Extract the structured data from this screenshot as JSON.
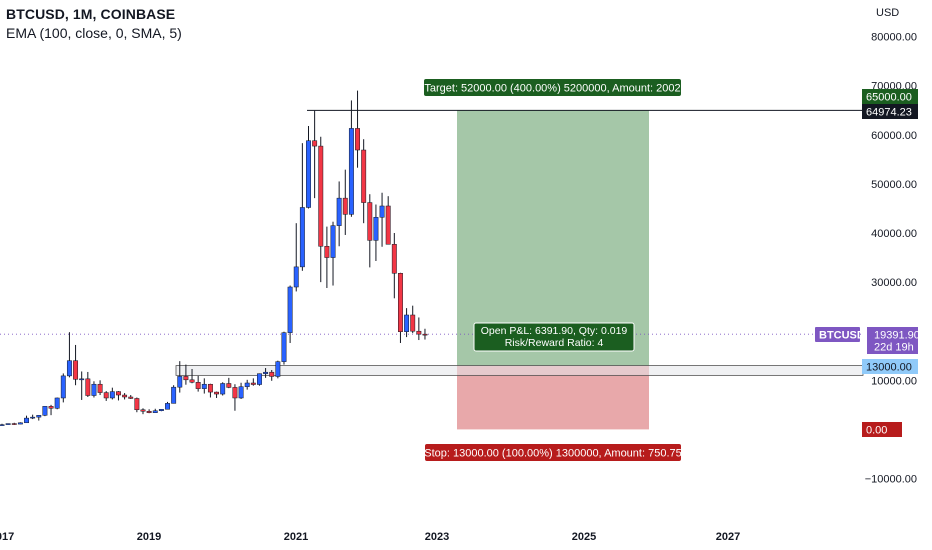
{
  "legend": {
    "symbol_line": "BTCUSD, 1M, COINBASE",
    "indicator_line": "EMA (100, close, 0, SMA, 5)"
  },
  "price_axis": {
    "currency": "USD",
    "ticks": [
      {
        "value": 80000,
        "label": "80000.00"
      },
      {
        "value": 70000,
        "label": "70000.00"
      },
      {
        "value": 60000,
        "label": "60000.00"
      },
      {
        "value": 50000,
        "label": "50000.00"
      },
      {
        "value": 40000,
        "label": "40000.00"
      },
      {
        "value": 30000,
        "label": "30000.00"
      },
      {
        "value": 10000,
        "label": "10000.00"
      },
      {
        "value": -10000,
        "label": "−10000.00"
      }
    ]
  },
  "time_axis": {
    "labels": [
      "2017",
      "2019",
      "2021",
      "2023",
      "2025",
      "2027"
    ]
  },
  "price_tags": {
    "target_price": "65000.00",
    "high_line": "64974.23",
    "symbol": "BTCUSD",
    "last_price": "19391.90",
    "countdown": "22d 19h",
    "entry": "13000.00",
    "stop_zero": "0.00"
  },
  "position": {
    "target_label": "Target: 52000.00 (400.00%) 5200000, Amount: 2002",
    "stop_label": "Stop: 13000.00 (100.00%) 1300000, Amount: 750.75",
    "pnl_line1": "Open P&L: 6391.90, Qty: 0.019",
    "pnl_line2": "Risk/Reward Ratio: 4"
  },
  "colors": {
    "up": "#2962ff",
    "down": "#f23645",
    "target_fill": "#a5c7a8",
    "stop_fill": "#e8a8aa",
    "target_tag": "#1b5e20",
    "stop_tag": "#b71c1c",
    "symbol_tag": "#7e57c2",
    "entry_tag": "#90caf9",
    "last_price_line": "#7e57c2"
  },
  "chart_data": {
    "type": "candlestick",
    "symbol": "BTCUSD",
    "interval": "1M",
    "exchange": "COINBASE",
    "price_range": [
      -15000,
      85000
    ],
    "horizontal_line": 64974.23,
    "support_zone": [
      11000,
      13000
    ],
    "long_position": {
      "entry": 13000,
      "target": 65000,
      "stop": 0
    },
    "candles": [
      {
        "date": "2016-07",
        "open": 620,
        "high": 700,
        "low": 600,
        "close": 650
      },
      {
        "date": "2016-08",
        "open": 650,
        "high": 680,
        "low": 540,
        "close": 580
      },
      {
        "date": "2016-09",
        "open": 580,
        "high": 620,
        "low": 570,
        "close": 600
      },
      {
        "date": "2016-10",
        "open": 600,
        "high": 720,
        "low": 600,
        "close": 700
      },
      {
        "date": "2016-11",
        "open": 700,
        "high": 750,
        "low": 690,
        "close": 740
      },
      {
        "date": "2016-12",
        "open": 740,
        "high": 980,
        "low": 740,
        "close": 960
      },
      {
        "date": "2017-01",
        "open": 960,
        "high": 1150,
        "low": 750,
        "close": 970
      },
      {
        "date": "2017-02",
        "open": 970,
        "high": 1200,
        "low": 950,
        "close": 1190
      },
      {
        "date": "2017-03",
        "open": 1190,
        "high": 1350,
        "low": 900,
        "close": 1080
      },
      {
        "date": "2017-04",
        "open": 1080,
        "high": 1450,
        "low": 1070,
        "close": 1350
      },
      {
        "date": "2017-05",
        "open": 1350,
        "high": 2800,
        "low": 1350,
        "close": 2300
      },
      {
        "date": "2017-06",
        "open": 2300,
        "high": 3000,
        "low": 2100,
        "close": 2500
      },
      {
        "date": "2017-07",
        "open": 2500,
        "high": 2900,
        "low": 1800,
        "close": 2870
      },
      {
        "date": "2017-08",
        "open": 2870,
        "high": 4700,
        "low": 2700,
        "close": 4700
      },
      {
        "date": "2017-09",
        "open": 4700,
        "high": 5000,
        "low": 2900,
        "close": 4300
      },
      {
        "date": "2017-10",
        "open": 4300,
        "high": 6500,
        "low": 4100,
        "close": 6400
      },
      {
        "date": "2017-11",
        "open": 6400,
        "high": 11400,
        "low": 5500,
        "close": 10900
      },
      {
        "date": "2017-12",
        "open": 10900,
        "high": 19800,
        "low": 10600,
        "close": 14000
      },
      {
        "date": "2018-01",
        "open": 14000,
        "high": 17200,
        "low": 9000,
        "close": 10200
      },
      {
        "date": "2018-02",
        "open": 10200,
        "high": 11800,
        "low": 6000,
        "close": 10300
      },
      {
        "date": "2018-03",
        "open": 10300,
        "high": 11700,
        "low": 6600,
        "close": 6900
      },
      {
        "date": "2018-04",
        "open": 6900,
        "high": 9800,
        "low": 6500,
        "close": 9200
      },
      {
        "date": "2018-05",
        "open": 9200,
        "high": 10000,
        "low": 7000,
        "close": 7500
      },
      {
        "date": "2018-06",
        "open": 7500,
        "high": 7800,
        "low": 5800,
        "close": 6400
      },
      {
        "date": "2018-07",
        "open": 6400,
        "high": 8500,
        "low": 6100,
        "close": 7700
      },
      {
        "date": "2018-08",
        "open": 7700,
        "high": 7800,
        "low": 5900,
        "close": 7000
      },
      {
        "date": "2018-09",
        "open": 7000,
        "high": 7400,
        "low": 6100,
        "close": 6600
      },
      {
        "date": "2018-10",
        "open": 6600,
        "high": 7000,
        "low": 6200,
        "close": 6300
      },
      {
        "date": "2018-11",
        "open": 6300,
        "high": 6500,
        "low": 3500,
        "close": 4000
      },
      {
        "date": "2018-12",
        "open": 4000,
        "high": 4300,
        "low": 3100,
        "close": 3700
      },
      {
        "date": "2019-01",
        "open": 3700,
        "high": 4100,
        "low": 3300,
        "close": 3400
      },
      {
        "date": "2019-02",
        "open": 3400,
        "high": 4200,
        "low": 3400,
        "close": 3800
      },
      {
        "date": "2019-03",
        "open": 3800,
        "high": 4100,
        "low": 3700,
        "close": 4100
      },
      {
        "date": "2019-04",
        "open": 4100,
        "high": 5600,
        "low": 4100,
        "close": 5300
      },
      {
        "date": "2019-05",
        "open": 5300,
        "high": 9000,
        "low": 5300,
        "close": 8600
      },
      {
        "date": "2019-06",
        "open": 8600,
        "high": 13900,
        "low": 7500,
        "close": 10800
      },
      {
        "date": "2019-07",
        "open": 10800,
        "high": 13200,
        "low": 9100,
        "close": 10100
      },
      {
        "date": "2019-08",
        "open": 10100,
        "high": 12300,
        "low": 9400,
        "close": 9600
      },
      {
        "date": "2019-09",
        "open": 9600,
        "high": 10900,
        "low": 7700,
        "close": 8300
      },
      {
        "date": "2019-10",
        "open": 8300,
        "high": 10400,
        "low": 7300,
        "close": 9200
      },
      {
        "date": "2019-11",
        "open": 9200,
        "high": 9300,
        "low": 6500,
        "close": 7600
      },
      {
        "date": "2019-12",
        "open": 7600,
        "high": 7700,
        "low": 6400,
        "close": 7200
      },
      {
        "date": "2020-01",
        "open": 7200,
        "high": 9600,
        "low": 6900,
        "close": 9350
      },
      {
        "date": "2020-02",
        "open": 9350,
        "high": 10500,
        "low": 8400,
        "close": 8550
      },
      {
        "date": "2020-03",
        "open": 8550,
        "high": 9200,
        "low": 3800,
        "close": 6400
      },
      {
        "date": "2020-04",
        "open": 6400,
        "high": 9500,
        "low": 6200,
        "close": 8700
      },
      {
        "date": "2020-05",
        "open": 8700,
        "high": 10100,
        "low": 8100,
        "close": 9450
      },
      {
        "date": "2020-06",
        "open": 9450,
        "high": 10400,
        "low": 8900,
        "close": 9140
      },
      {
        "date": "2020-07",
        "open": 9140,
        "high": 11400,
        "low": 8900,
        "close": 11350
      },
      {
        "date": "2020-08",
        "open": 11350,
        "high": 12500,
        "low": 10500,
        "close": 11650
      },
      {
        "date": "2020-09",
        "open": 11650,
        "high": 12100,
        "low": 9900,
        "close": 10780
      },
      {
        "date": "2020-10",
        "open": 10780,
        "high": 14000,
        "low": 10400,
        "close": 13800
      },
      {
        "date": "2020-11",
        "open": 13800,
        "high": 19900,
        "low": 13200,
        "close": 19700
      },
      {
        "date": "2020-12",
        "open": 19700,
        "high": 29300,
        "low": 17600,
        "close": 29000
      },
      {
        "date": "2021-01",
        "open": 29000,
        "high": 42000,
        "low": 28100,
        "close": 33100
      },
      {
        "date": "2021-02",
        "open": 33100,
        "high": 58300,
        "low": 32300,
        "close": 45200
      },
      {
        "date": "2021-03",
        "open": 45200,
        "high": 61800,
        "low": 45000,
        "close": 58800
      },
      {
        "date": "2021-04",
        "open": 58800,
        "high": 64900,
        "low": 47100,
        "close": 57700
      },
      {
        "date": "2021-05",
        "open": 57700,
        "high": 59600,
        "low": 30000,
        "close": 37300
      },
      {
        "date": "2021-06",
        "open": 37300,
        "high": 41300,
        "low": 28800,
        "close": 35000
      },
      {
        "date": "2021-07",
        "open": 35000,
        "high": 42300,
        "low": 29300,
        "close": 41500
      },
      {
        "date": "2021-08",
        "open": 41500,
        "high": 50500,
        "low": 37300,
        "close": 47100
      },
      {
        "date": "2021-09",
        "open": 47100,
        "high": 52900,
        "low": 39600,
        "close": 43800
      },
      {
        "date": "2021-10",
        "open": 43800,
        "high": 67000,
        "low": 43300,
        "close": 61300
      },
      {
        "date": "2021-11",
        "open": 61300,
        "high": 69000,
        "low": 53300,
        "close": 56900
      },
      {
        "date": "2021-12",
        "open": 56900,
        "high": 59100,
        "low": 42000,
        "close": 46200
      },
      {
        "date": "2022-01",
        "open": 46200,
        "high": 47900,
        "low": 33000,
        "close": 38500
      },
      {
        "date": "2022-02",
        "open": 38500,
        "high": 45800,
        "low": 34300,
        "close": 43200
      },
      {
        "date": "2022-03",
        "open": 43200,
        "high": 48200,
        "low": 37200,
        "close": 45500
      },
      {
        "date": "2022-04",
        "open": 45500,
        "high": 47500,
        "low": 37700,
        "close": 37700
      },
      {
        "date": "2022-05",
        "open": 37700,
        "high": 40000,
        "low": 26700,
        "close": 31800
      },
      {
        "date": "2022-06",
        "open": 31800,
        "high": 31900,
        "low": 17600,
        "close": 19900
      },
      {
        "date": "2022-07",
        "open": 19900,
        "high": 24700,
        "low": 18800,
        "close": 23300
      },
      {
        "date": "2022-08",
        "open": 23300,
        "high": 25200,
        "low": 19600,
        "close": 20000
      },
      {
        "date": "2022-09",
        "open": 20000,
        "high": 22800,
        "low": 18200,
        "close": 19400
      },
      {
        "date": "2022-10",
        "open": 19400,
        "high": 20500,
        "low": 18300,
        "close": 19390
      }
    ]
  }
}
